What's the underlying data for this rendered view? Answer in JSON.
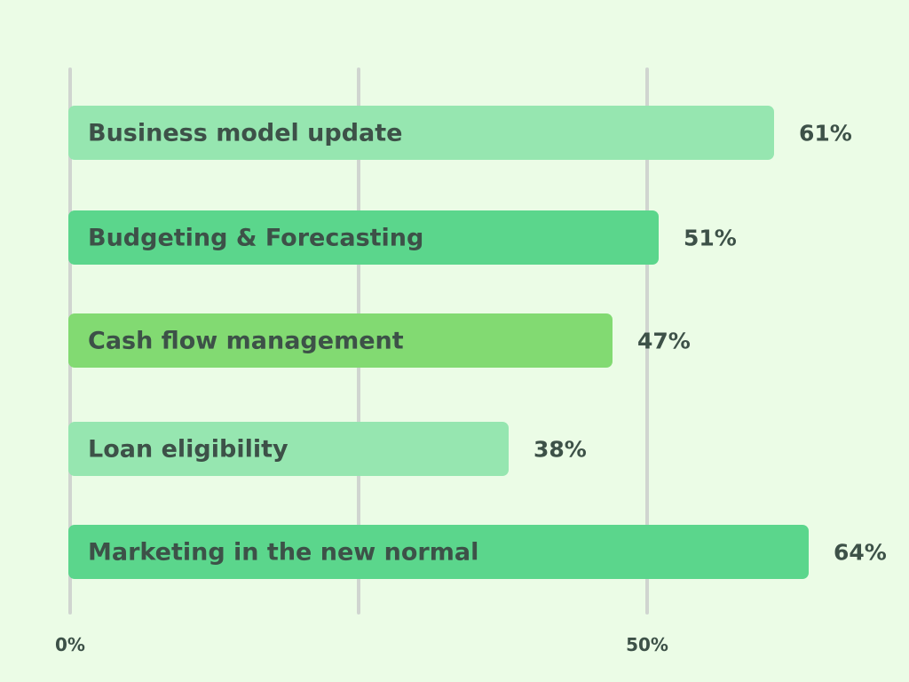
{
  "chart_data": {
    "type": "bar",
    "orientation": "horizontal",
    "categories": [
      "Business model update",
      "Budgeting & Forecasting",
      "Cash flow management",
      "Loan eligibility",
      "Marketing in the new normal"
    ],
    "values": [
      61,
      51,
      47,
      38,
      64
    ],
    "value_labels": [
      "61%",
      "51%",
      "47%",
      "38%",
      "64%"
    ],
    "bar_colors": [
      "#96e6b0",
      "#5bd68c",
      "#82da72",
      "#96e6b0",
      "#5bd68c"
    ],
    "xlim": [
      0,
      50
    ],
    "gridlines": [
      0,
      25,
      50
    ],
    "tick_labels": [
      {
        "value": 0,
        "label": "0%"
      },
      {
        "value": 50,
        "label": "50%"
      }
    ],
    "grid": true,
    "background": "#ebfce6",
    "gridline_color": "#d0d5d0",
    "text_color": "#3d5148"
  }
}
